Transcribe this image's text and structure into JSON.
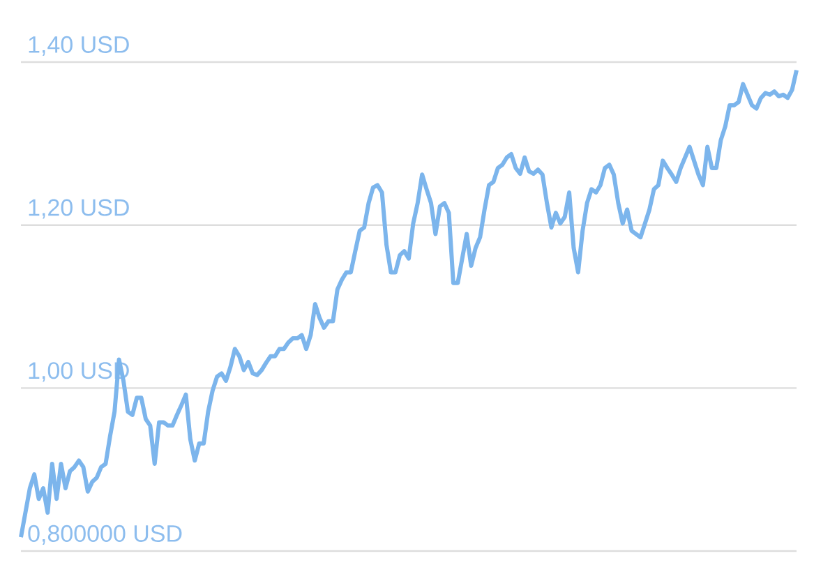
{
  "chart_data": {
    "type": "line",
    "color": "#7cb5ec",
    "categories": [
      null,
      null,
      null,
      null,
      null,
      null,
      null,
      null,
      null,
      null,
      null,
      null,
      null,
      null,
      null,
      null,
      null,
      null,
      null,
      null,
      null,
      null,
      null,
      null,
      null,
      null,
      null,
      null,
      null,
      null,
      null,
      null,
      null,
      null,
      null,
      null,
      null,
      null,
      null,
      null,
      null,
      null,
      null,
      null,
      null,
      null,
      null,
      null,
      null,
      null,
      null,
      null,
      null,
      null,
      null,
      null,
      null,
      null,
      null,
      null,
      null,
      null,
      null,
      null,
      null,
      null,
      null,
      null,
      null,
      null,
      null,
      null,
      null,
      null,
      null,
      null,
      null,
      null,
      null,
      null,
      null,
      null,
      null,
      null,
      null,
      null,
      null,
      null,
      null,
      null,
      null,
      null,
      null,
      null,
      null,
      null,
      null,
      null,
      null,
      null,
      null,
      null,
      null,
      null,
      null,
      null,
      null,
      null,
      null,
      null,
      null,
      null,
      null,
      null,
      null,
      null,
      null,
      null,
      null,
      null,
      null,
      null,
      null,
      null,
      null,
      null,
      null,
      null,
      null,
      null,
      null,
      null,
      null,
      null,
      null,
      null,
      null,
      null,
      null,
      null,
      null,
      null,
      null,
      null,
      null,
      null,
      null,
      null,
      null,
      null,
      null,
      null,
      null,
      null,
      null,
      null,
      null,
      null,
      null,
      null,
      null,
      null,
      null,
      null,
      null,
      null,
      null,
      null,
      null,
      null,
      null,
      null,
      null,
      null,
      null
    ],
    "values": [
      0.817,
      0.847,
      0.877,
      0.894,
      0.864,
      0.877,
      0.847,
      0.907,
      0.864,
      0.907,
      0.877,
      0.898,
      0.903,
      0.911,
      0.903,
      0.873,
      0.885,
      0.89,
      0.903,
      0.907,
      0.941,
      0.971,
      1.035,
      1.009,
      0.971,
      0.967,
      0.988,
      0.988,
      0.962,
      0.954,
      0.907,
      0.958,
      0.958,
      0.954,
      0.954,
      0.967,
      0.979,
      0.992,
      0.937,
      0.911,
      0.932,
      0.932,
      0.971,
      0.997,
      1.014,
      1.018,
      1.009,
      1.026,
      1.048,
      1.039,
      1.022,
      1.032,
      1.018,
      1.016,
      1.022,
      1.031,
      1.039,
      1.039,
      1.048,
      1.048,
      1.056,
      1.061,
      1.061,
      1.065,
      1.048,
      1.065,
      1.103,
      1.086,
      1.074,
      1.082,
      1.082,
      1.121,
      1.133,
      1.142,
      1.142,
      1.168,
      1.193,
      1.197,
      1.227,
      1.246,
      1.249,
      1.24,
      1.176,
      1.142,
      1.142,
      1.163,
      1.168,
      1.159,
      1.202,
      1.227,
      1.262,
      1.244,
      1.227,
      1.189,
      1.223,
      1.227,
      1.215,
      1.129,
      1.129,
      1.159,
      1.189,
      1.15,
      1.172,
      1.185,
      1.219,
      1.249,
      1.253,
      1.27,
      1.274,
      1.283,
      1.287,
      1.27,
      1.263,
      1.283,
      1.266,
      1.263,
      1.268,
      1.262,
      1.227,
      1.197,
      1.215,
      1.202,
      1.21,
      1.24,
      1.172,
      1.142,
      1.193,
      1.227,
      1.244,
      1.24,
      1.249,
      1.27,
      1.274,
      1.262,
      1.227,
      1.202,
      1.219,
      1.193,
      1.189,
      1.185,
      1.202,
      1.219,
      1.244,
      1.249,
      1.279,
      1.27,
      1.262,
      1.253,
      1.27,
      1.283,
      1.296,
      1.279,
      1.262,
      1.249,
      1.296,
      1.27,
      1.27,
      1.304,
      1.321,
      1.347,
      1.347,
      1.351,
      1.373,
      1.36,
      1.347,
      1.343,
      1.356,
      1.362,
      1.36,
      1.364,
      1.358,
      1.36,
      1.356,
      1.366,
      1.39
    ],
    "ylim": [
      0.8,
      1.4
    ],
    "yticks": [
      {
        "value": 0.8,
        "label": "0,800000 USD"
      },
      {
        "value": 1.0,
        "label": "1,00 USD"
      },
      {
        "value": 1.2,
        "label": "1,20 USD"
      },
      {
        "value": 1.4,
        "label": "1,40 USD"
      }
    ],
    "grid": "y"
  }
}
